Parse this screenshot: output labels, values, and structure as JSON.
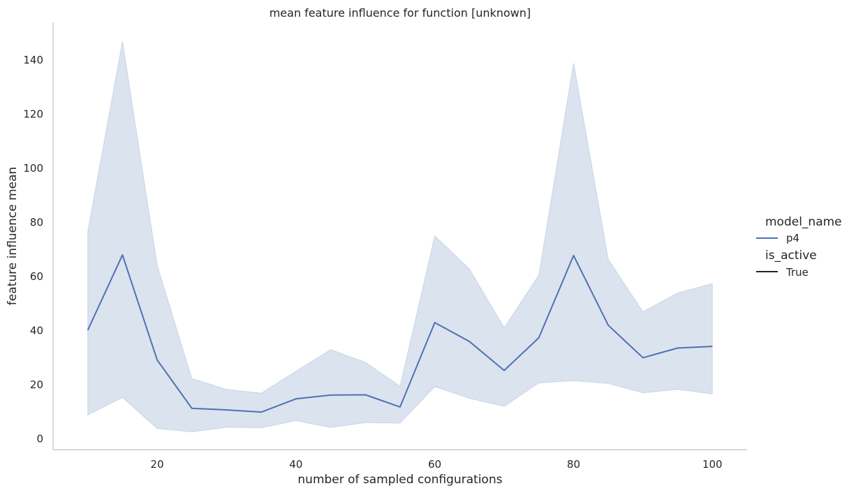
{
  "chart_data": {
    "type": "line",
    "title": "mean feature influence for function [unknown]",
    "xlabel": "number of sampled configurations",
    "ylabel": "feature influence mean",
    "xlim": [
      5,
      105
    ],
    "ylim": [
      -4,
      154
    ],
    "x_ticks": [
      20,
      40,
      60,
      80,
      100
    ],
    "y_ticks": [
      0,
      20,
      40,
      60,
      80,
      100,
      120,
      140
    ],
    "grid": false,
    "legend_placement": "right",
    "legend": {
      "hue_title": "model_name",
      "hue_entries": [
        {
          "label": "p4",
          "color": "#4c72b0"
        }
      ],
      "style_title": "is_active",
      "style_entries": [
        {
          "label": "True",
          "color": "#262626"
        }
      ]
    },
    "series": [
      {
        "name": "p4",
        "color": "#4c72b0",
        "band_color": "#4c72b0",
        "x": [
          10,
          15,
          20,
          25,
          30,
          35,
          40,
          45,
          50,
          55,
          60,
          65,
          70,
          75,
          80,
          85,
          90,
          95,
          100
        ],
        "y": [
          40.2,
          68,
          29.2,
          11.3,
          10.7,
          9.9,
          14.8,
          16.2,
          16.3,
          11.8,
          43,
          36,
          25.3,
          37.4,
          67.8,
          42,
          30,
          33.6,
          34.2
        ],
        "y_lower": [
          8.8,
          15.3,
          3.8,
          2.6,
          4.3,
          4.1,
          6.7,
          4.2,
          6,
          5.8,
          19.3,
          15,
          12,
          20.7,
          21.5,
          20.5,
          17,
          18.3,
          16.6
        ],
        "y_upper": [
          76.7,
          147,
          64.3,
          22.3,
          18.3,
          16.9,
          25,
          33,
          28.3,
          19.5,
          75.1,
          62.8,
          41.1,
          60.6,
          139,
          66.4,
          47,
          54,
          57.4
        ]
      }
    ]
  }
}
